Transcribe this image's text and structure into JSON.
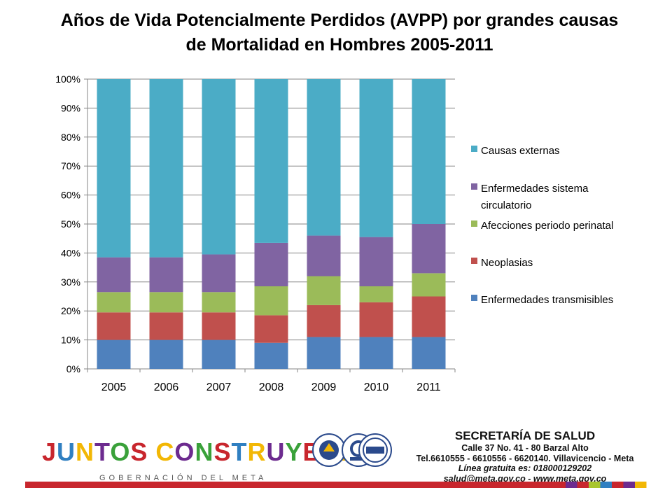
{
  "title": {
    "line1": "Años de Vida Potencialmente Perdidos (AVPP) por grandes causas",
    "line2": "de Mortalidad en Hombres 2005-2011"
  },
  "chart_data": {
    "type": "bar",
    "stacked": true,
    "percent": true,
    "categories": [
      "2005",
      "2006",
      "2007",
      "2008",
      "2009",
      "2010",
      "2011"
    ],
    "series": [
      {
        "name": "Enfermedades transmisibles",
        "color": "#4f81bd",
        "values": [
          10,
          10,
          10,
          9,
          11,
          11,
          11
        ]
      },
      {
        "name": "Neoplasias",
        "color": "#c0504d",
        "values": [
          9.5,
          9.5,
          9.5,
          9.5,
          11,
          12,
          14
        ]
      },
      {
        "name": "Afecciones periodo perinatal",
        "color": "#9bbb59",
        "values": [
          7,
          7,
          7,
          10,
          10,
          5.5,
          8
        ]
      },
      {
        "name": "Enfermedades sistema circulatorio",
        "color": "#8064a2",
        "values": [
          12,
          12,
          13,
          15,
          14,
          17,
          17
        ]
      },
      {
        "name": "Causas externas",
        "color": "#4bacc6",
        "values": [
          61.5,
          61.5,
          60.5,
          56.5,
          54,
          54.5,
          50
        ]
      }
    ],
    "legend_order": [
      "Causas externas",
      "Enfermedades sistema circulatorio",
      "Afecciones periodo perinatal",
      "Neoplasias",
      "Enfermedades transmisibles"
    ],
    "legend_lines": [
      [
        "Causas externas"
      ],
      [
        "Enfermedades sistema",
        "circulatorio"
      ],
      [
        "Afecciones periodo perinatal"
      ],
      [
        "Neoplasias"
      ],
      [
        "Enfermedades transmisibles"
      ]
    ],
    "yticks": [
      "0%",
      "10%",
      "20%",
      "30%",
      "40%",
      "50%",
      "60%",
      "70%",
      "80%",
      "90%",
      "100%"
    ],
    "ylim": [
      0,
      100
    ],
    "grid": true,
    "legend_position": "right"
  },
  "footer": {
    "logo_text": "JUNTOS CONSTRUYENDO",
    "logo_subtitle": "GOBERNACIÓN DEL META",
    "heading": "SECRETARÍA DE SALUD",
    "address": "Calle 37 No. 41 - 80 Barzal Alto",
    "phones": "Tel.6610555 - 6610556 - 6620140. Villavicencio - Meta",
    "hotline": "Línea gratuita es: 018000129202",
    "email": "salud@meta.gov.co - www.meta.gov.co",
    "colors": {
      "band_main": "#c8262d",
      "band_accents": [
        "#6d2b8f",
        "#c8262d",
        "#a8c62d",
        "#2f7fc1",
        "#c8262d",
        "#6d2b8f",
        "#f2b705"
      ]
    }
  }
}
